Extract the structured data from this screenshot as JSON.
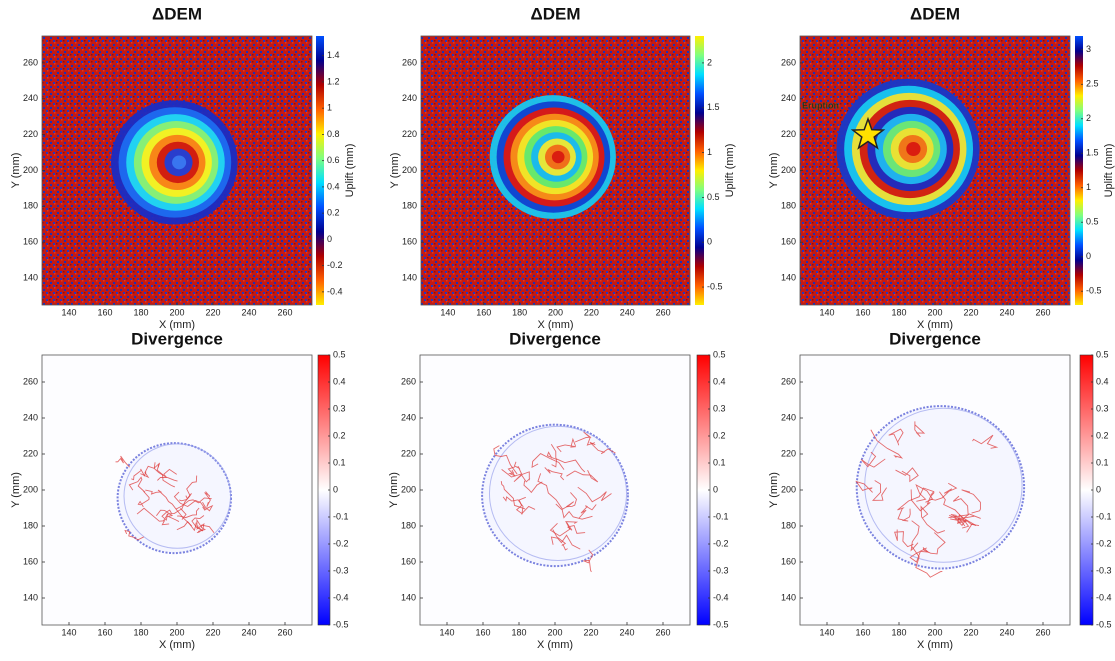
{
  "chart_data": [
    {
      "type": "heatmap",
      "title": "ΔDEM",
      "xlabel": "X (mm)",
      "ylabel": "Y (mm)",
      "colorbar_label": "Uplift (mm)",
      "colormap": "jet-cyclic",
      "xlim": [
        125,
        275
      ],
      "ylim": [
        125,
        275
      ],
      "xticks": [
        140,
        160,
        180,
        200,
        220,
        240,
        260
      ],
      "yticks": [
        140,
        160,
        180,
        200,
        220,
        240,
        260
      ],
      "clim": [
        -0.5,
        1.55
      ],
      "cticks": [
        -0.4,
        -0.2,
        0,
        0.2,
        0.4,
        0.6,
        0.8,
        1,
        1.2,
        1.4
      ]
    },
    {
      "type": "heatmap",
      "title": "ΔDEM",
      "xlabel": "X (mm)",
      "ylabel": "Y (mm)",
      "colorbar_label": "Uplift (mm)",
      "colormap": "jet-cyclic",
      "xlim": [
        125,
        275
      ],
      "ylim": [
        125,
        275
      ],
      "xticks": [
        140,
        160,
        180,
        200,
        220,
        240,
        260
      ],
      "yticks": [
        140,
        160,
        180,
        200,
        220,
        240,
        260
      ],
      "clim": [
        -0.7,
        2.3
      ],
      "cticks": [
        -0.5,
        0,
        0.5,
        1,
        1.5,
        2
      ]
    },
    {
      "type": "heatmap",
      "title": "ΔDEM",
      "xlabel": "X (mm)",
      "ylabel": "Y (mm)",
      "colorbar_label": "Uplift (mm)",
      "colormap": "jet-cyclic",
      "xlim": [
        125,
        275
      ],
      "ylim": [
        125,
        275
      ],
      "xticks": [
        140,
        160,
        180,
        200,
        220,
        240,
        260
      ],
      "yticks": [
        140,
        160,
        180,
        200,
        220,
        240,
        260
      ],
      "clim": [
        -0.7,
        3.2
      ],
      "cticks": [
        -0.5,
        0,
        0.5,
        1,
        1.5,
        2,
        2.5,
        3
      ],
      "annotation": "Eruption"
    },
    {
      "type": "heatmap",
      "title": "Divergence",
      "xlabel": "X (mm)",
      "ylabel": "Y (mm)",
      "colormap": "bwr",
      "xlim": [
        125,
        275
      ],
      "ylim": [
        125,
        275
      ],
      "xticks": [
        140,
        160,
        180,
        200,
        220,
        240,
        260
      ],
      "yticks": [
        140,
        160,
        180,
        200,
        220,
        240,
        260
      ],
      "clim": [
        -0.5,
        0.5
      ],
      "cticks": [
        -0.5,
        -0.4,
        -0.3,
        -0.2,
        -0.1,
        0,
        0.1,
        0.2,
        0.3,
        0.4,
        0.5
      ]
    },
    {
      "type": "heatmap",
      "title": "Divergence",
      "xlabel": "X (mm)",
      "ylabel": "Y (mm)",
      "colormap": "bwr",
      "xlim": [
        125,
        275
      ],
      "ylim": [
        125,
        275
      ],
      "xticks": [
        140,
        160,
        180,
        200,
        220,
        240,
        260
      ],
      "yticks": [
        140,
        160,
        180,
        200,
        220,
        240,
        260
      ],
      "clim": [
        -0.5,
        0.5
      ],
      "cticks": [
        -0.5,
        -0.4,
        -0.3,
        -0.2,
        -0.1,
        0,
        0.1,
        0.2,
        0.3,
        0.4,
        0.5
      ]
    },
    {
      "type": "heatmap",
      "title": "Divergence",
      "xlabel": "X (mm)",
      "ylabel": "Y (mm)",
      "colormap": "bwr",
      "xlim": [
        125,
        275
      ],
      "ylim": [
        125,
        275
      ],
      "xticks": [
        140,
        160,
        180,
        200,
        220,
        240,
        260
      ],
      "yticks": [
        140,
        160,
        180,
        200,
        220,
        240,
        260
      ],
      "clim": [
        -0.5,
        0.5
      ],
      "cticks": [
        -0.5,
        -0.4,
        -0.3,
        -0.2,
        -0.1,
        0,
        0.1,
        0.2,
        0.3,
        0.4,
        0.5
      ]
    }
  ]
}
